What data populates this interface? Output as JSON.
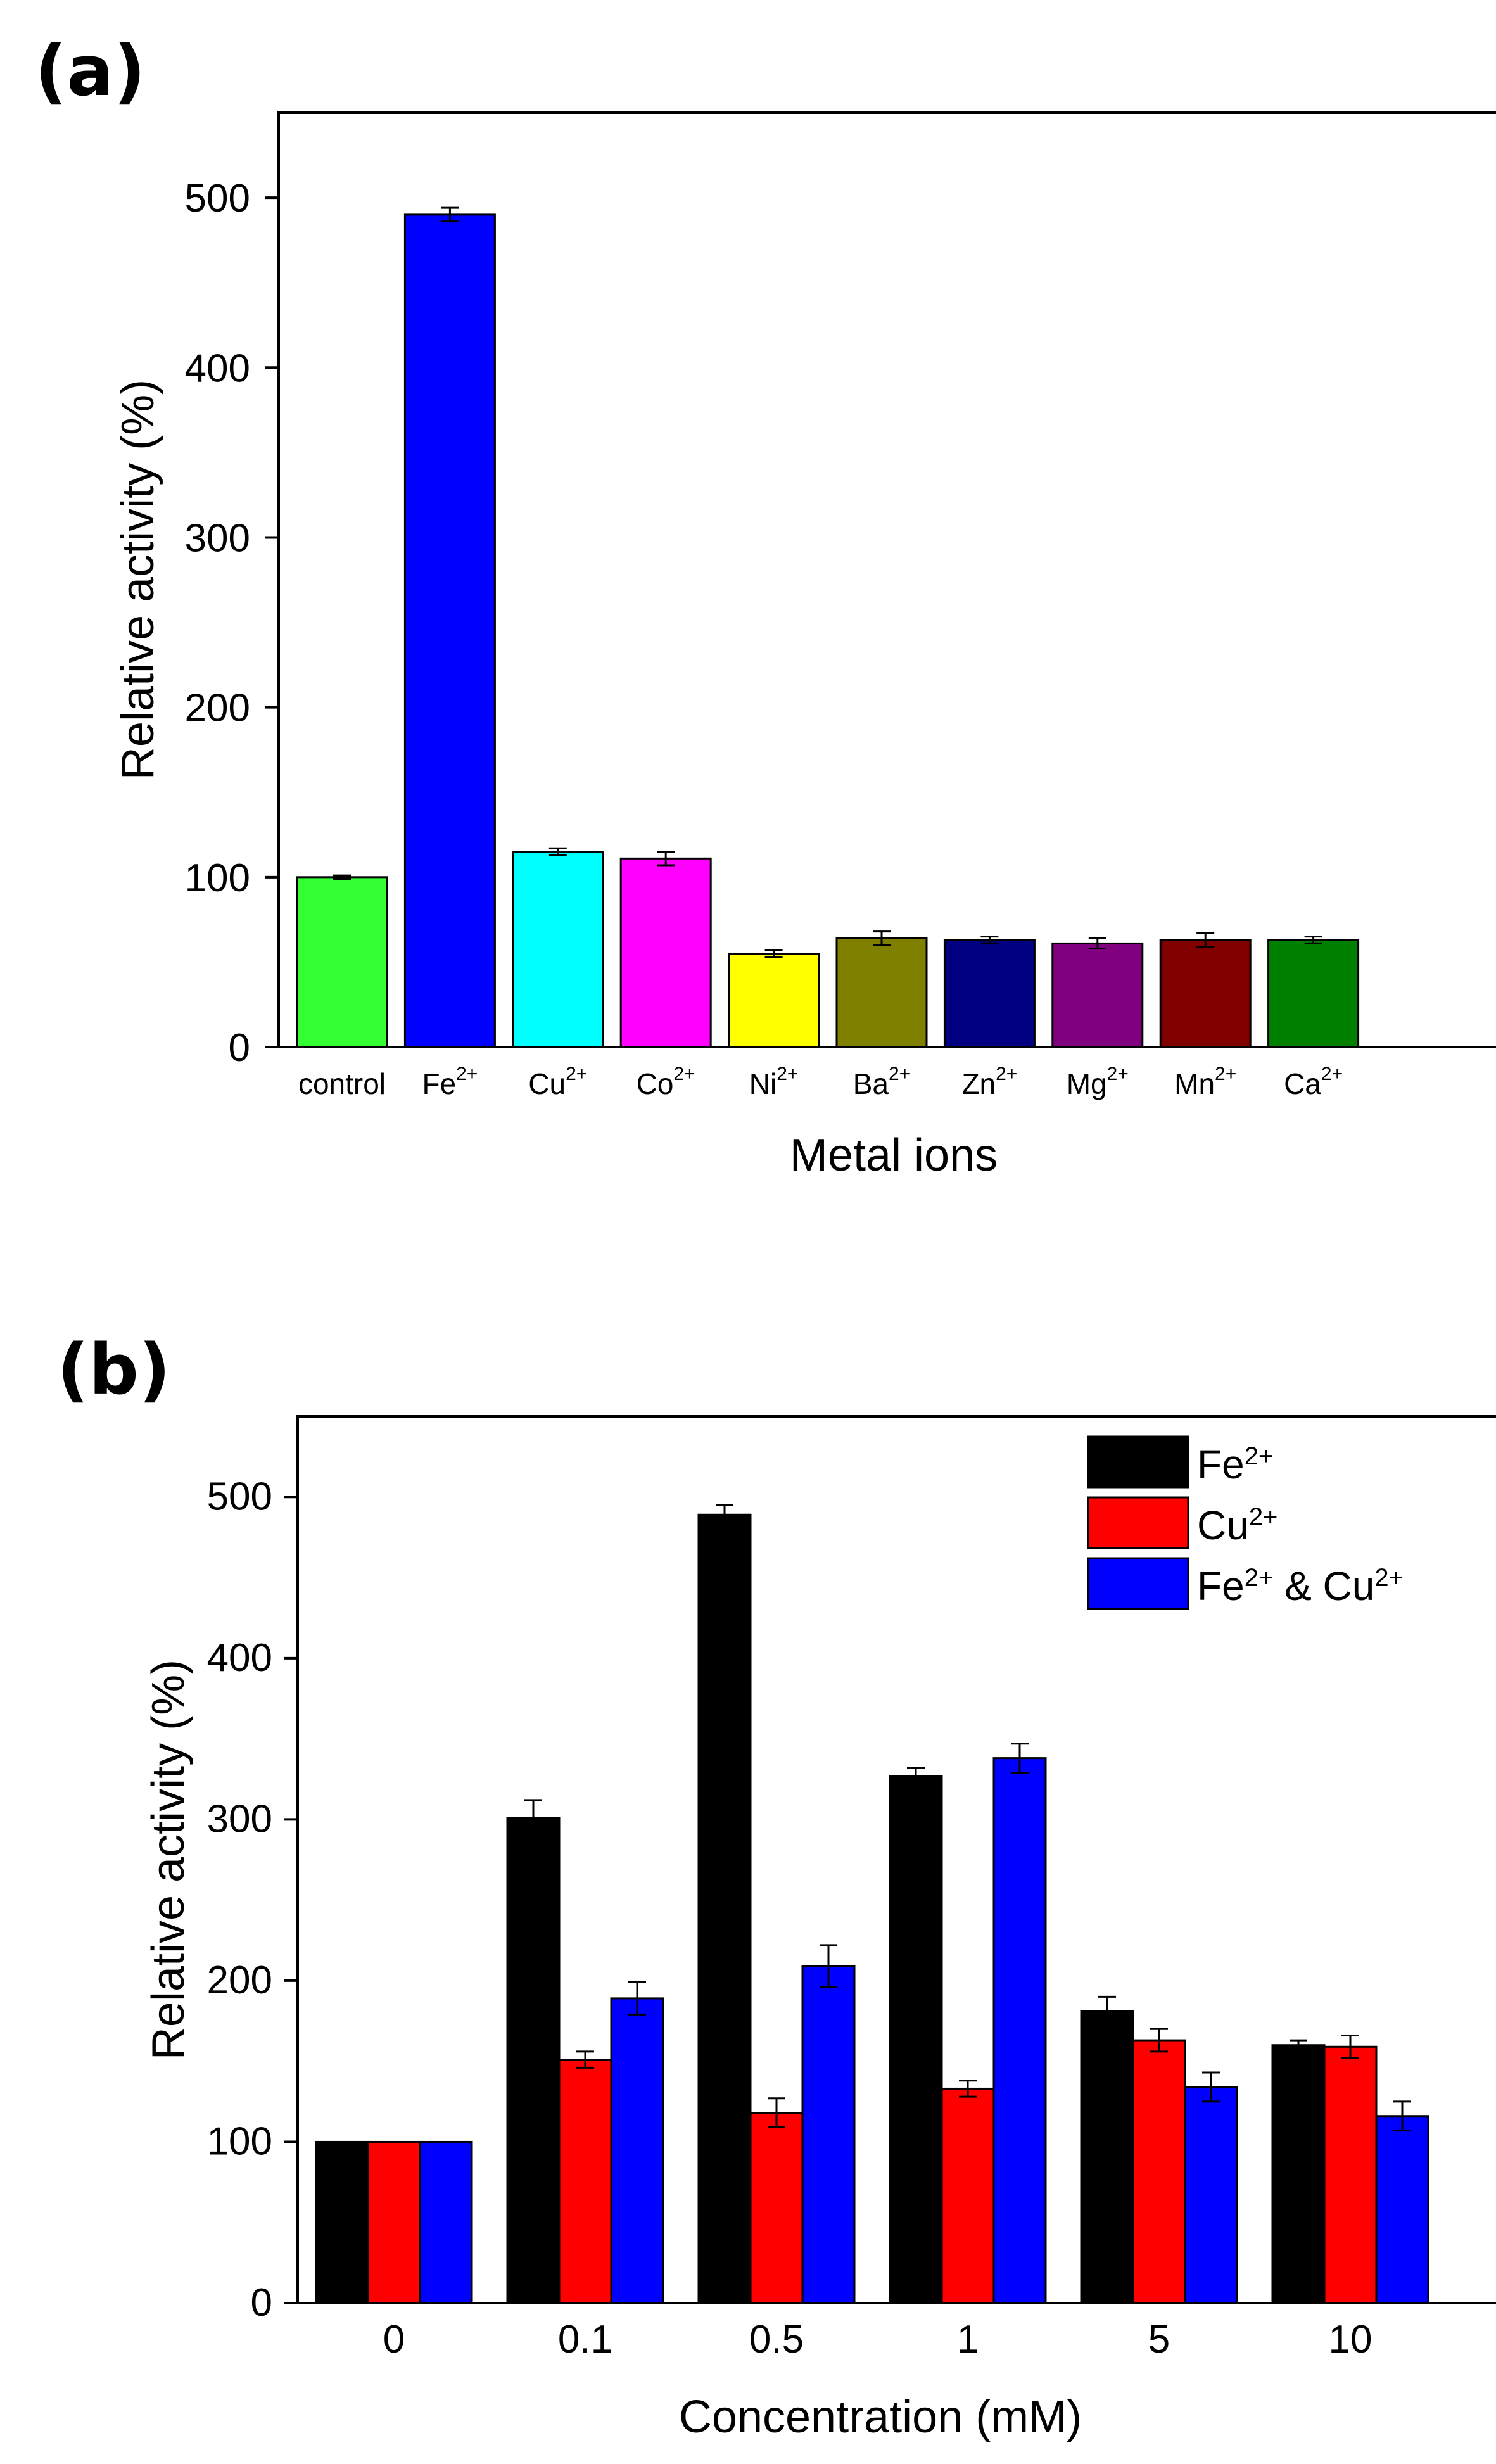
{
  "chart_data": [
    {
      "panel_label": "(a)",
      "type": "bar",
      "title": "",
      "xlabel": "Metal ions",
      "ylabel": "Relative activity (%)",
      "ylim": [
        0,
        550
      ],
      "yticks": [
        "0",
        "100",
        "200",
        "300",
        "400",
        "500"
      ],
      "categories": [
        {
          "base": "control",
          "sup": ""
        },
        {
          "base": "Fe",
          "sup": "2+"
        },
        {
          "base": "Cu",
          "sup": "2+"
        },
        {
          "base": "Co",
          "sup": "2+"
        },
        {
          "base": "Ni",
          "sup": "2+"
        },
        {
          "base": "Ba",
          "sup": "2+"
        },
        {
          "base": "Zn",
          "sup": "2+"
        },
        {
          "base": "Mg",
          "sup": "2+"
        },
        {
          "base": "Mn",
          "sup": "2+"
        },
        {
          "base": "Ca",
          "sup": "2+"
        }
      ],
      "values": [
        100,
        490,
        115,
        111,
        55,
        64,
        63,
        61,
        63,
        63
      ],
      "errors": [
        1,
        4,
        2,
        4,
        2,
        4,
        2,
        3,
        4,
        2
      ],
      "colors": [
        "#33ff33",
        "#0000ff",
        "#00ffff",
        "#ff00ff",
        "#ffff00",
        "#808000",
        "#000080",
        "#800080",
        "#800000",
        "#008000"
      ]
    },
    {
      "panel_label": "(b)",
      "type": "bar",
      "title": "",
      "xlabel": "Concentration (mM)",
      "ylabel": "Relative activity (%)",
      "ylim": [
        0,
        550
      ],
      "yticks": [
        "0",
        "100",
        "200",
        "300",
        "400",
        "500"
      ],
      "categories": [
        "0",
        "0.1",
        "0.5",
        "1",
        "5",
        "10"
      ],
      "series": [
        {
          "name": "Fe",
          "sup": "2+",
          "suffix": "",
          "suffix_sup": "",
          "color": "#000000",
          "values": [
            100,
            301,
            489,
            327,
            181,
            160
          ],
          "errors": [
            0,
            11,
            6,
            5,
            9,
            3
          ]
        },
        {
          "name": "Cu",
          "sup": "2+",
          "suffix": "",
          "suffix_sup": "",
          "color": "#ff0000",
          "values": [
            100,
            151,
            118,
            133,
            163,
            159
          ],
          "errors": [
            0,
            5,
            9,
            5,
            7,
            7
          ]
        },
        {
          "name": "Fe",
          "sup": "2+",
          "suffix": " & Cu",
          "suffix_sup": "2+",
          "color": "#0000ff",
          "values": [
            100,
            189,
            209,
            338,
            134,
            116
          ],
          "errors": [
            0,
            10,
            13,
            9,
            9,
            9
          ]
        }
      ],
      "legend_position": "top-right"
    }
  ]
}
